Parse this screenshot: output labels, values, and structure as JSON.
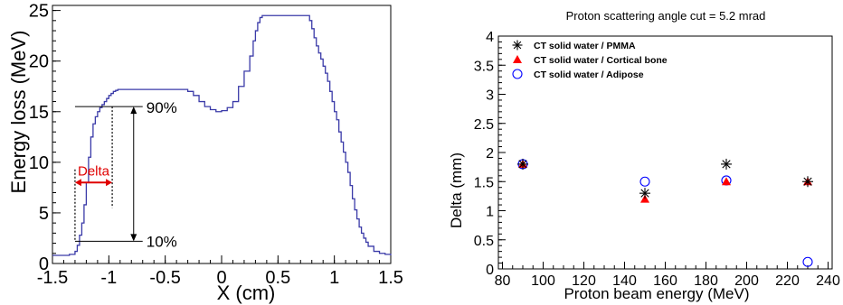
{
  "chart_data": [
    {
      "type": "line",
      "xlabel": "X (cm)",
      "ylabel": "Energy loss (MeV)",
      "xlim": [
        -1.5,
        1.5
      ],
      "ylim": [
        0,
        25.5
      ],
      "x_ticks": [
        "-1.5",
        "-1",
        "-0.5",
        "0",
        "0.5",
        "1",
        "1.5"
      ],
      "y_ticks": [
        "0",
        "5",
        "10",
        "15",
        "20",
        "25"
      ],
      "grid": false,
      "line_color": "#3a3aa8",
      "series": [
        {
          "x": [
            -1.5,
            -1.45,
            -1.4,
            -1.35,
            -1.3,
            -1.28,
            -1.26,
            -1.24,
            -1.22,
            -1.2,
            -1.18,
            -1.16,
            -1.14,
            -1.12,
            -1.1,
            -1.08,
            -1.06,
            -1.04,
            -1.02,
            -1.0,
            -0.98,
            -0.96,
            -0.94,
            -0.92,
            -0.9,
            -0.85,
            -0.8,
            -0.75,
            -0.7,
            -0.6,
            -0.5,
            -0.4,
            -0.3,
            -0.25,
            -0.2,
            -0.15,
            -0.1,
            -0.05,
            0.0,
            0.05,
            0.1,
            0.15,
            0.2,
            0.25,
            0.28,
            0.3,
            0.32,
            0.34,
            0.36,
            0.38,
            0.4,
            0.5,
            0.6,
            0.7,
            0.75,
            0.78,
            0.8,
            0.82,
            0.84,
            0.86,
            0.88,
            0.9,
            0.92,
            0.94,
            0.96,
            0.98,
            1.0,
            1.02,
            1.04,
            1.06,
            1.08,
            1.1,
            1.12,
            1.14,
            1.16,
            1.18,
            1.2,
            1.22,
            1.24,
            1.26,
            1.28,
            1.3,
            1.35,
            1.4,
            1.45,
            1.5
          ],
          "y": [
            0.8,
            0.8,
            0.8,
            0.9,
            1.2,
            1.8,
            2.8,
            4.0,
            5.8,
            8.0,
            10.5,
            12.5,
            13.8,
            14.5,
            15.0,
            15.4,
            15.7,
            16.0,
            16.3,
            16.6,
            16.8,
            17.0,
            17.1,
            17.2,
            17.2,
            17.2,
            17.2,
            17.2,
            17.2,
            17.2,
            17.2,
            17.2,
            17.0,
            16.6,
            16.0,
            15.5,
            15.2,
            15.0,
            15.1,
            15.4,
            16.0,
            17.5,
            19.0,
            20.5,
            22.0,
            23.0,
            23.8,
            24.3,
            24.5,
            24.5,
            24.5,
            24.5,
            24.5,
            24.5,
            24.5,
            24.0,
            23.2,
            22.3,
            21.5,
            20.8,
            20.2,
            19.5,
            18.8,
            18.0,
            17.0,
            16.0,
            15.0,
            14.2,
            13.0,
            12.0,
            11.0,
            10.0,
            9.0,
            7.7,
            6.4,
            5.3,
            4.4,
            3.6,
            3.0,
            2.5,
            2.1,
            1.7,
            1.2,
            1.0,
            0.9,
            0.8
          ]
        }
      ],
      "annotations": {
        "p90_label": "90%",
        "p10_label": "10%",
        "delta_label": "Delta",
        "level_90_y": 15.5,
        "level_10_y": 2.2,
        "level_90_x_from": -1.3,
        "level_90_x_to": -0.7,
        "level_10_x_from": -1.3,
        "level_10_x_to": -0.7,
        "arrow_x": -0.78,
        "delta_x1": -1.3,
        "delta_x2": -0.97,
        "delta_y": 8.0,
        "delta_color": "#e00000"
      }
    },
    {
      "type": "scatter",
      "title": "Proton scattering angle cut = 5.2 mrad",
      "xlabel": "Proton beam energy (MeV)",
      "ylabel": "Delta (mm)",
      "xlim": [
        78,
        242
      ],
      "ylim": [
        0,
        4
      ],
      "x_ticks": [
        "80",
        "100",
        "120",
        "140",
        "160",
        "180",
        "200",
        "220",
        "240"
      ],
      "y_ticks": [
        "0",
        "0.5",
        "1",
        "1.5",
        "2",
        "2.5",
        "3",
        "3.5",
        "4"
      ],
      "grid": false,
      "legend_position": "top-left",
      "series": [
        {
          "name": "CT solid water / PMMA",
          "marker": "asterisk",
          "color": "#000000",
          "x": [
            90,
            150,
            190,
            230
          ],
          "y": [
            1.8,
            1.3,
            1.8,
            1.5
          ]
        },
        {
          "name": "CT solid water / Cortical bone",
          "marker": "triangle",
          "color": "#ff0000",
          "x": [
            90,
            150,
            190,
            230
          ],
          "y": [
            1.8,
            1.2,
            1.5,
            1.5
          ]
        },
        {
          "name": "CT solid water / Adipose",
          "marker": "circle",
          "color": "#0000ff",
          "x": [
            90,
            150,
            190,
            230
          ],
          "y": [
            1.8,
            1.5,
            1.52,
            0.12
          ]
        }
      ]
    }
  ]
}
